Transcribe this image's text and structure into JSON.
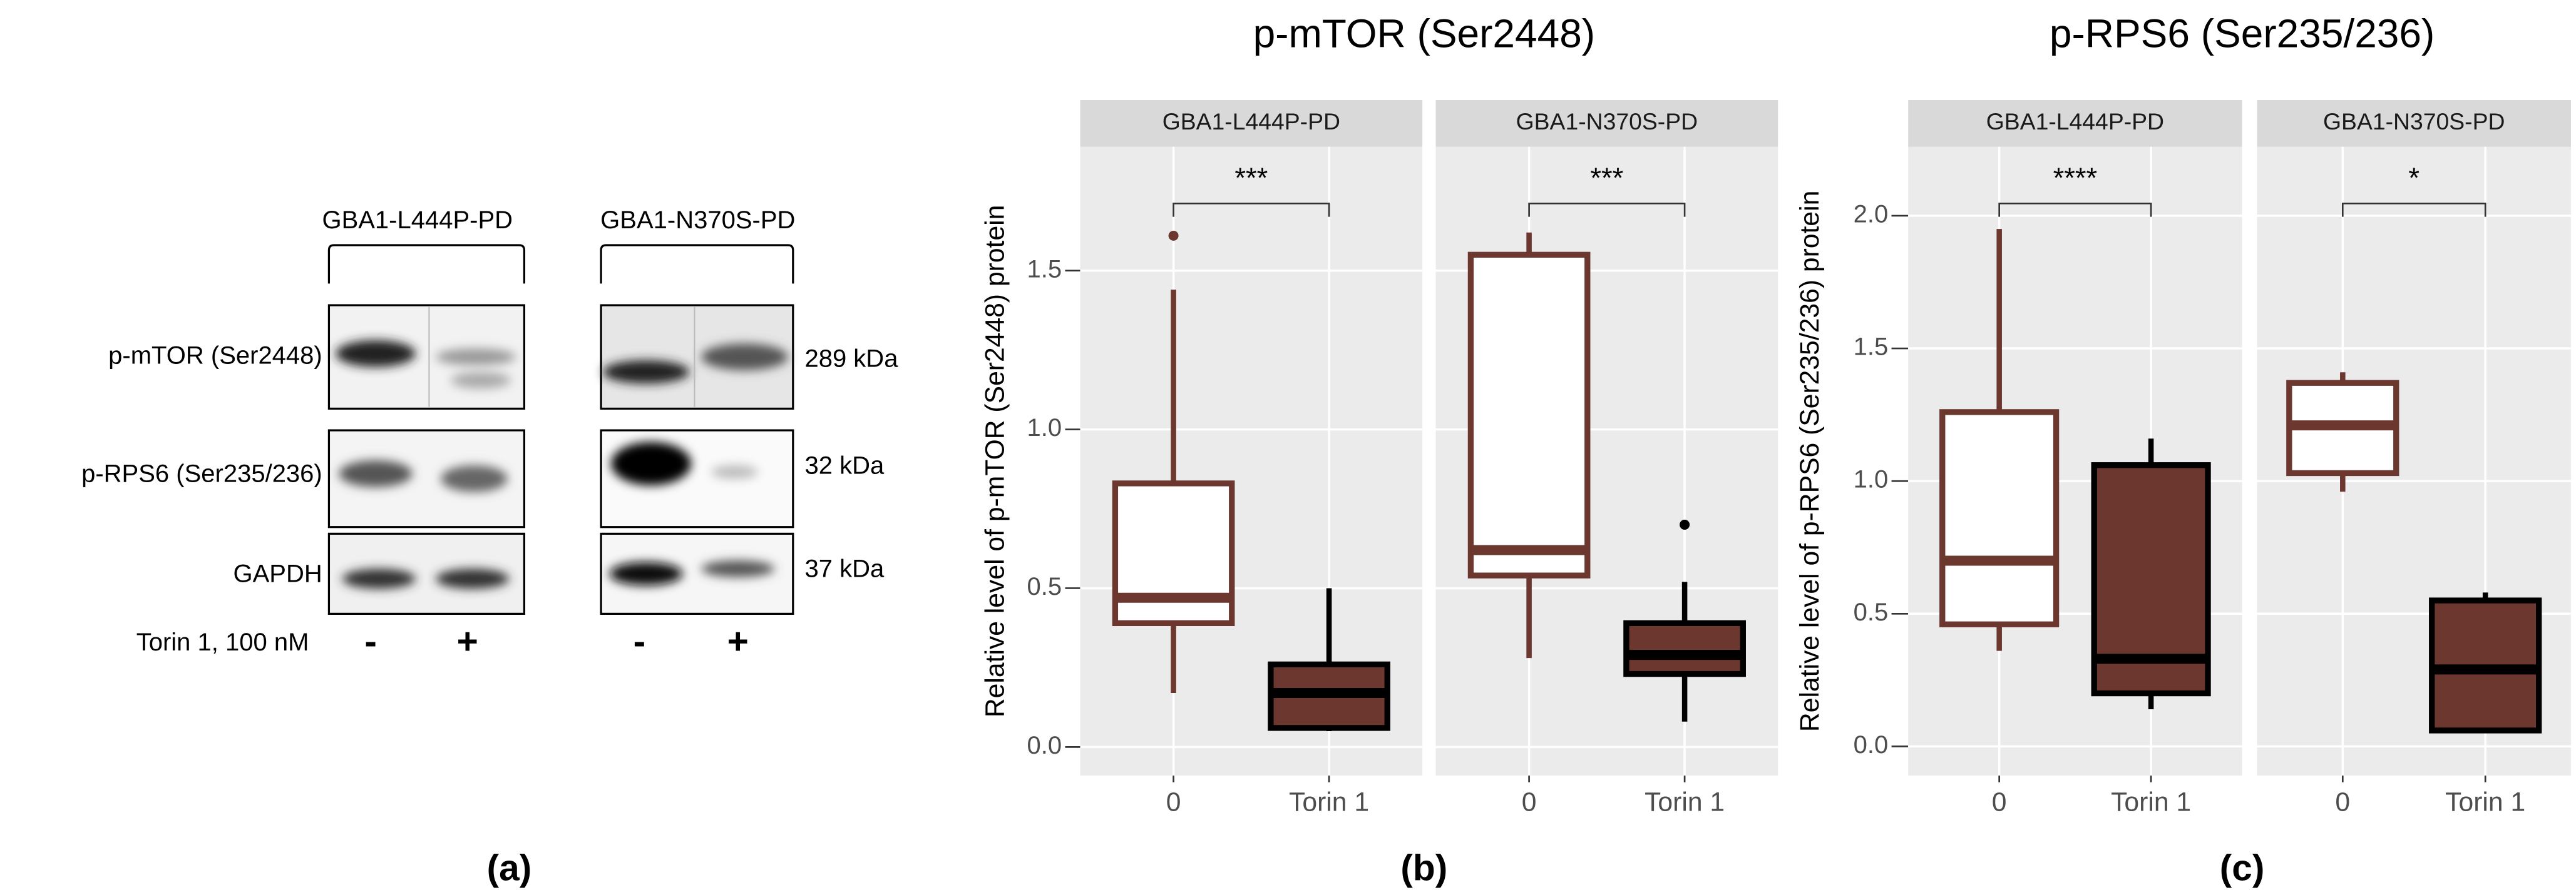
{
  "blot": {
    "groups": [
      "GBA1-L444P-PD",
      "GBA1-N370S-PD"
    ],
    "rows": [
      "p-mTOR (Ser2448)",
      "p-RPS6 (Ser235/236)",
      "GAPDH"
    ],
    "sizes": [
      "289 kDa",
      "32 kDa",
      "37 kDa"
    ],
    "treatment": "Torin 1, 100 nM",
    "lanes": [
      "-",
      "+",
      "-",
      "+"
    ],
    "panel_label": "(a)"
  },
  "chart_data": [
    {
      "type": "box",
      "title": "p-mTOR (Ser2448)",
      "y_label": "Relative level of p-mTOR (Ser2448) protein",
      "panel_label": "(b)",
      "categories": [
        "0",
        "Torin 1"
      ],
      "fill_colors": [
        "#ffffff",
        "#6b372f"
      ],
      "line_colors": [
        "#6b372f",
        "#000000"
      ],
      "ylim": [
        -0.09,
        1.89
      ],
      "yticks": [
        {
          "value": 0,
          "label": "0.0"
        },
        0.5,
        {
          "value": 1,
          "label": "1.0"
        },
        1.5
      ],
      "grid": true,
      "facets": [
        {
          "name": "GBA1-L444P-PD",
          "significance": "***",
          "boxes": [
            {
              "min": 0.17,
              "q1": 0.39,
              "median": 0.47,
              "q3": 0.83,
              "max": 1.44,
              "outliers": [
                1.61
              ]
            },
            {
              "min": 0.05,
              "q1": 0.06,
              "median": 0.17,
              "q3": 0.26,
              "max": 0.5
            }
          ]
        },
        {
          "name": "GBA1-N370S-PD",
          "significance": "***",
          "boxes": [
            {
              "min": 0.28,
              "q1": 0.54,
              "median": 0.62,
              "q3": 1.55,
              "max": 1.62
            },
            {
              "min": 0.08,
              "q1": 0.23,
              "median": 0.29,
              "q3": 0.39,
              "max": 0.52,
              "outliers": [
                0.7
              ]
            }
          ]
        }
      ]
    },
    {
      "type": "box",
      "title": "p-RPS6 (Ser235/236)",
      "y_label": "Relative level of p-RPS6 (Ser235/236) protein",
      "panel_label": "(c)",
      "categories": [
        "0",
        "Torin 1"
      ],
      "fill_colors": [
        "#ffffff",
        "#6b372f"
      ],
      "line_colors": [
        "#6b372f",
        "#000000"
      ],
      "ylim": [
        -0.11,
        2.26
      ],
      "yticks": [
        {
          "value": 0,
          "label": "0.0"
        },
        0.5,
        {
          "value": 1,
          "label": "1.0"
        },
        1.5,
        {
          "value": 2,
          "label": "2.0"
        }
      ],
      "grid": true,
      "facets": [
        {
          "name": "GBA1-L444P-PD",
          "significance": "****",
          "boxes": [
            {
              "min": 0.36,
              "q1": 0.46,
              "median": 0.7,
              "q3": 1.26,
              "max": 1.95
            },
            {
              "min": 0.14,
              "q1": 0.2,
              "median": 0.33,
              "q3": 1.06,
              "max": 1.16
            }
          ]
        },
        {
          "name": "GBA1-N370S-PD",
          "significance": "*",
          "boxes": [
            {
              "min": 0.96,
              "q1": 1.03,
              "median": 1.21,
              "q3": 1.37,
              "max": 1.41
            },
            {
              "min": 0.05,
              "q1": 0.06,
              "median": 0.29,
              "q3": 0.55,
              "max": 0.58
            }
          ]
        }
      ]
    }
  ]
}
